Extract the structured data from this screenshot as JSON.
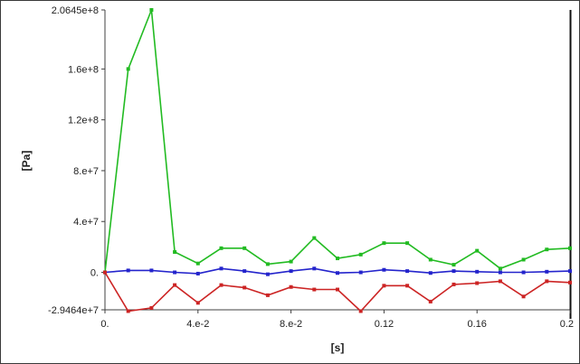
{
  "chart_data": {
    "type": "line",
    "title": "",
    "xlabel": "[s]",
    "ylabel": "[Pa]",
    "xlim": [
      0,
      0.2
    ],
    "ylim": [
      -29464000,
      206450000
    ],
    "x_ticks": [
      {
        "value": 0,
        "label": "0."
      },
      {
        "value": 0.04,
        "label": "4.e-2"
      },
      {
        "value": 0.08,
        "label": "8.e-2"
      },
      {
        "value": 0.12,
        "label": "0.12"
      },
      {
        "value": 0.16,
        "label": "0.16"
      },
      {
        "value": 0.2,
        "label": "0.2"
      }
    ],
    "y_ticks": [
      {
        "value": 206450000,
        "label": "2.0645e+8"
      },
      {
        "value": 160000000,
        "label": "1.6e+8"
      },
      {
        "value": 120000000,
        "label": "1.2e+8"
      },
      {
        "value": 80000000,
        "label": "8.e+7"
      },
      {
        "value": 40000000,
        "label": "4.e+7"
      },
      {
        "value": 0,
        "label": "0."
      },
      {
        "value": -29464000,
        "label": "-2.9464e+7"
      }
    ],
    "grid": false,
    "legend": "none",
    "series": [
      {
        "color": "#22bb22",
        "x": [
          0,
          0.01,
          0.02,
          0.03,
          0.04,
          0.05,
          0.06,
          0.07,
          0.08,
          0.09,
          0.1,
          0.11,
          0.12,
          0.13,
          0.14,
          0.15,
          0.16,
          0.17,
          0.18,
          0.19,
          0.2
        ],
        "values": [
          0,
          160000000,
          206450000,
          16000000,
          7000000,
          19000000,
          19000000,
          6500000,
          8500000,
          27000000,
          11000000,
          14000000,
          23000000,
          23000000,
          10000000,
          6000000,
          17000000,
          3000000,
          10000000,
          18000000,
          19000000
        ]
      },
      {
        "color": "#2424cc",
        "x": [
          0,
          0.01,
          0.02,
          0.03,
          0.04,
          0.05,
          0.06,
          0.07,
          0.08,
          0.09,
          0.1,
          0.11,
          0.12,
          0.13,
          0.14,
          0.15,
          0.16,
          0.17,
          0.18,
          0.19,
          0.2
        ],
        "values": [
          0,
          1500000,
          1500000,
          0,
          -1000000,
          3000000,
          1000000,
          -1500000,
          1000000,
          3000000,
          -500000,
          0,
          2000000,
          1000000,
          -500000,
          1000000,
          500000,
          0,
          0,
          500000,
          1000000
        ]
      },
      {
        "color": "#cc2424",
        "x": [
          0,
          0.01,
          0.02,
          0.03,
          0.04,
          0.05,
          0.06,
          0.07,
          0.08,
          0.09,
          0.1,
          0.11,
          0.12,
          0.13,
          0.14,
          0.15,
          0.16,
          0.17,
          0.18,
          0.19,
          0.2
        ],
        "values": [
          0,
          -30500000,
          -28000000,
          -10000000,
          -24000000,
          -10000000,
          -12000000,
          -18000000,
          -11500000,
          -13500000,
          -13500000,
          -30500000,
          -10500000,
          -10500000,
          -23000000,
          -9500000,
          -8500000,
          -7000000,
          -19000000,
          -7000000,
          -8000000
        ]
      }
    ]
  }
}
